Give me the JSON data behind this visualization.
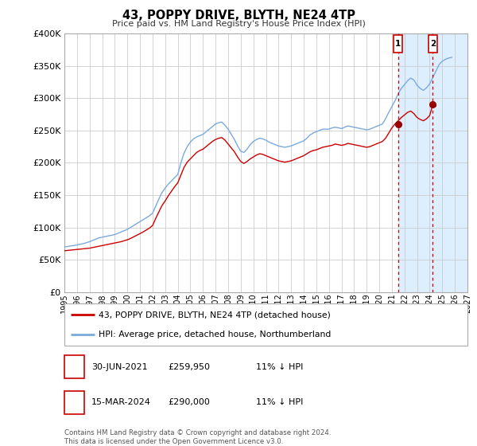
{
  "title": "43, POPPY DRIVE, BLYTH, NE24 4TP",
  "subtitle": "Price paid vs. HM Land Registry's House Price Index (HPI)",
  "red_label": "43, POPPY DRIVE, BLYTH, NE24 4TP (detached house)",
  "blue_label": "HPI: Average price, detached house, Northumberland",
  "annotation1": {
    "label": "1",
    "date": "2021-06-30",
    "price": 259950,
    "text": "30-JUN-2021",
    "price_str": "£259,950",
    "pct": "11% ↓ HPI"
  },
  "annotation2": {
    "label": "2",
    "date": "2024-03-15",
    "price": 290000,
    "text": "15-MAR-2024",
    "price_str": "£290,000",
    "pct": "11% ↓ HPI"
  },
  "xmin": 1995.0,
  "xmax": 2027.0,
  "ymin": 0,
  "ymax": 400000,
  "yticks": [
    0,
    50000,
    100000,
    150000,
    200000,
    250000,
    300000,
    350000,
    400000
  ],
  "ytick_labels": [
    "£0",
    "£50K",
    "£100K",
    "£150K",
    "£200K",
    "£250K",
    "£300K",
    "£350K",
    "£400K"
  ],
  "xticks": [
    1995,
    1996,
    1997,
    1998,
    1999,
    2000,
    2001,
    2002,
    2003,
    2004,
    2005,
    2006,
    2007,
    2008,
    2009,
    2010,
    2011,
    2012,
    2013,
    2014,
    2015,
    2016,
    2017,
    2018,
    2019,
    2020,
    2021,
    2022,
    2023,
    2024,
    2025,
    2026,
    2027
  ],
  "ann1_x": 2021.5,
  "ann2_x": 2024.25,
  "ann1_y": 259950,
  "ann2_y": 290000,
  "shaded_start": 2021.5,
  "shaded_end": 2027.0,
  "red_color": "#cc0000",
  "blue_color": "#7aaadd",
  "dot_color": "#990000",
  "shade_color": "#ddeeff",
  "vline_color": "#cc0000",
  "background_color": "#ffffff",
  "footer_line1": "Contains HM Land Registry data © Crown copyright and database right 2024.",
  "footer_line2": "This data is licensed under the Open Government Licence v3.0.",
  "hpi_data": [
    [
      1995.0,
      70000
    ],
    [
      1995.25,
      70500
    ],
    [
      1995.5,
      71500
    ],
    [
      1995.75,
      72000
    ],
    [
      1996.0,
      73000
    ],
    [
      1996.25,
      74000
    ],
    [
      1996.5,
      75000
    ],
    [
      1996.75,
      76500
    ],
    [
      1997.0,
      78000
    ],
    [
      1997.25,
      80000
    ],
    [
      1997.5,
      82000
    ],
    [
      1997.75,
      84000
    ],
    [
      1998.0,
      85000
    ],
    [
      1998.25,
      86000
    ],
    [
      1998.5,
      87000
    ],
    [
      1998.75,
      88000
    ],
    [
      1999.0,
      89000
    ],
    [
      1999.25,
      91000
    ],
    [
      1999.5,
      93000
    ],
    [
      1999.75,
      95000
    ],
    [
      2000.0,
      97000
    ],
    [
      2000.25,
      100000
    ],
    [
      2000.5,
      103000
    ],
    [
      2000.75,
      106000
    ],
    [
      2001.0,
      109000
    ],
    [
      2001.25,
      112000
    ],
    [
      2001.5,
      115000
    ],
    [
      2001.75,
      118000
    ],
    [
      2002.0,
      122000
    ],
    [
      2002.25,
      133000
    ],
    [
      2002.5,
      144000
    ],
    [
      2002.75,
      154000
    ],
    [
      2003.0,
      161000
    ],
    [
      2003.25,
      167000
    ],
    [
      2003.5,
      172000
    ],
    [
      2003.75,
      177000
    ],
    [
      2004.0,
      182000
    ],
    [
      2004.25,
      200000
    ],
    [
      2004.5,
      215000
    ],
    [
      2004.75,
      225000
    ],
    [
      2005.0,
      232000
    ],
    [
      2005.25,
      237000
    ],
    [
      2005.5,
      240000
    ],
    [
      2005.75,
      242000
    ],
    [
      2006.0,
      244000
    ],
    [
      2006.25,
      248000
    ],
    [
      2006.5,
      252000
    ],
    [
      2006.75,
      256000
    ],
    [
      2007.0,
      260000
    ],
    [
      2007.25,
      262000
    ],
    [
      2007.5,
      263000
    ],
    [
      2007.75,
      258000
    ],
    [
      2008.0,
      252000
    ],
    [
      2008.25,
      244000
    ],
    [
      2008.5,
      236000
    ],
    [
      2008.75,
      226000
    ],
    [
      2009.0,
      218000
    ],
    [
      2009.25,
      216000
    ],
    [
      2009.5,
      221000
    ],
    [
      2009.75,
      228000
    ],
    [
      2010.0,
      233000
    ],
    [
      2010.25,
      236000
    ],
    [
      2010.5,
      238000
    ],
    [
      2010.75,
      237000
    ],
    [
      2011.0,
      235000
    ],
    [
      2011.25,
      232000
    ],
    [
      2011.5,
      230000
    ],
    [
      2011.75,
      228000
    ],
    [
      2012.0,
      226000
    ],
    [
      2012.25,
      225000
    ],
    [
      2012.5,
      224000
    ],
    [
      2012.75,
      225000
    ],
    [
      2013.0,
      226000
    ],
    [
      2013.25,
      228000
    ],
    [
      2013.5,
      230000
    ],
    [
      2013.75,
      232000
    ],
    [
      2014.0,
      234000
    ],
    [
      2014.25,
      238000
    ],
    [
      2014.5,
      243000
    ],
    [
      2014.75,
      246000
    ],
    [
      2015.0,
      248000
    ],
    [
      2015.25,
      250000
    ],
    [
      2015.5,
      252000
    ],
    [
      2015.75,
      252000
    ],
    [
      2016.0,
      252000
    ],
    [
      2016.25,
      254000
    ],
    [
      2016.5,
      255000
    ],
    [
      2016.75,
      254000
    ],
    [
      2017.0,
      253000
    ],
    [
      2017.25,
      255000
    ],
    [
      2017.5,
      257000
    ],
    [
      2017.75,
      256000
    ],
    [
      2018.0,
      255000
    ],
    [
      2018.25,
      254000
    ],
    [
      2018.5,
      253000
    ],
    [
      2018.75,
      252000
    ],
    [
      2019.0,
      251000
    ],
    [
      2019.25,
      252000
    ],
    [
      2019.5,
      254000
    ],
    [
      2019.75,
      256000
    ],
    [
      2020.0,
      258000
    ],
    [
      2020.25,
      260000
    ],
    [
      2020.5,
      268000
    ],
    [
      2020.75,
      278000
    ],
    [
      2021.0,
      287000
    ],
    [
      2021.25,
      296000
    ],
    [
      2021.5,
      307000
    ],
    [
      2021.75,
      315000
    ],
    [
      2022.0,
      321000
    ],
    [
      2022.25,
      327000
    ],
    [
      2022.5,
      331000
    ],
    [
      2022.75,
      328000
    ],
    [
      2023.0,
      320000
    ],
    [
      2023.25,
      315000
    ],
    [
      2023.5,
      312000
    ],
    [
      2023.75,
      316000
    ],
    [
      2024.0,
      322000
    ],
    [
      2024.25,
      332000
    ],
    [
      2024.5,
      342000
    ],
    [
      2024.75,
      352000
    ],
    [
      2025.0,
      357000
    ],
    [
      2025.25,
      360000
    ],
    [
      2025.5,
      362000
    ],
    [
      2025.75,
      363000
    ]
  ],
  "price_data": [
    [
      1995.0,
      64000
    ],
    [
      1995.25,
      64500
    ],
    [
      1995.5,
      65000
    ],
    [
      1995.75,
      65500
    ],
    [
      1996.0,
      66000
    ],
    [
      1996.25,
      66500
    ],
    [
      1996.5,
      67000
    ],
    [
      1996.75,
      67500
    ],
    [
      1997.0,
      68000
    ],
    [
      1997.25,
      69000
    ],
    [
      1997.5,
      70000
    ],
    [
      1997.75,
      71000
    ],
    [
      1998.0,
      72000
    ],
    [
      1998.25,
      73000
    ],
    [
      1998.5,
      74000
    ],
    [
      1998.75,
      75000
    ],
    [
      1999.0,
      76000
    ],
    [
      1999.25,
      77000
    ],
    [
      1999.5,
      78000
    ],
    [
      1999.75,
      79500
    ],
    [
      2000.0,
      81000
    ],
    [
      2000.25,
      83000
    ],
    [
      2000.5,
      85500
    ],
    [
      2000.75,
      88000
    ],
    [
      2001.0,
      90500
    ],
    [
      2001.25,
      93000
    ],
    [
      2001.5,
      96000
    ],
    [
      2001.75,
      99000
    ],
    [
      2002.0,
      103000
    ],
    [
      2002.25,
      114000
    ],
    [
      2002.5,
      124000
    ],
    [
      2002.75,
      134000
    ],
    [
      2003.0,
      141000
    ],
    [
      2003.25,
      149000
    ],
    [
      2003.5,
      156000
    ],
    [
      2003.75,
      163000
    ],
    [
      2004.0,
      169000
    ],
    [
      2004.25,
      181000
    ],
    [
      2004.5,
      193000
    ],
    [
      2004.75,
      201000
    ],
    [
      2005.0,
      206000
    ],
    [
      2005.25,
      211000
    ],
    [
      2005.5,
      216000
    ],
    [
      2005.75,
      219000
    ],
    [
      2006.0,
      221000
    ],
    [
      2006.25,
      225000
    ],
    [
      2006.5,
      229000
    ],
    [
      2006.75,
      233000
    ],
    [
      2007.0,
      236000
    ],
    [
      2007.25,
      238000
    ],
    [
      2007.5,
      239000
    ],
    [
      2007.75,
      235000
    ],
    [
      2008.0,
      229000
    ],
    [
      2008.25,
      223000
    ],
    [
      2008.5,
      217000
    ],
    [
      2008.75,
      209000
    ],
    [
      2009.0,
      202000
    ],
    [
      2009.25,
      199000
    ],
    [
      2009.5,
      202000
    ],
    [
      2009.75,
      206000
    ],
    [
      2010.0,
      209000
    ],
    [
      2010.25,
      212000
    ],
    [
      2010.5,
      214000
    ],
    [
      2010.75,
      213000
    ],
    [
      2011.0,
      211000
    ],
    [
      2011.25,
      209000
    ],
    [
      2011.5,
      207000
    ],
    [
      2011.75,
      205000
    ],
    [
      2012.0,
      203000
    ],
    [
      2012.25,
      202000
    ],
    [
      2012.5,
      201000
    ],
    [
      2012.75,
      202000
    ],
    [
      2013.0,
      203000
    ],
    [
      2013.25,
      205000
    ],
    [
      2013.5,
      207000
    ],
    [
      2013.75,
      209000
    ],
    [
      2014.0,
      211000
    ],
    [
      2014.25,
      214000
    ],
    [
      2014.5,
      217000
    ],
    [
      2014.75,
      219000
    ],
    [
      2015.0,
      220000
    ],
    [
      2015.25,
      222000
    ],
    [
      2015.5,
      224000
    ],
    [
      2015.75,
      225000
    ],
    [
      2016.0,
      226000
    ],
    [
      2016.25,
      227000
    ],
    [
      2016.5,
      229000
    ],
    [
      2016.75,
      228000
    ],
    [
      2017.0,
      227000
    ],
    [
      2017.25,
      228000
    ],
    [
      2017.5,
      230000
    ],
    [
      2017.75,
      229000
    ],
    [
      2018.0,
      228000
    ],
    [
      2018.25,
      227000
    ],
    [
      2018.5,
      226000
    ],
    [
      2018.75,
      225000
    ],
    [
      2019.0,
      224000
    ],
    [
      2019.25,
      225000
    ],
    [
      2019.5,
      227000
    ],
    [
      2019.75,
      229000
    ],
    [
      2020.0,
      231000
    ],
    [
      2020.25,
      233000
    ],
    [
      2020.5,
      238000
    ],
    [
      2020.75,
      246000
    ],
    [
      2021.0,
      254000
    ],
    [
      2021.25,
      259950
    ],
    [
      2021.5,
      265000
    ],
    [
      2021.75,
      270000
    ],
    [
      2022.0,
      274000
    ],
    [
      2022.25,
      278000
    ],
    [
      2022.5,
      280000
    ],
    [
      2022.75,
      276000
    ],
    [
      2023.0,
      270000
    ],
    [
      2023.25,
      267000
    ],
    [
      2023.5,
      265000
    ],
    [
      2023.75,
      268000
    ],
    [
      2024.0,
      273000
    ],
    [
      2024.25,
      290000
    ],
    [
      2024.5,
      288000
    ]
  ]
}
